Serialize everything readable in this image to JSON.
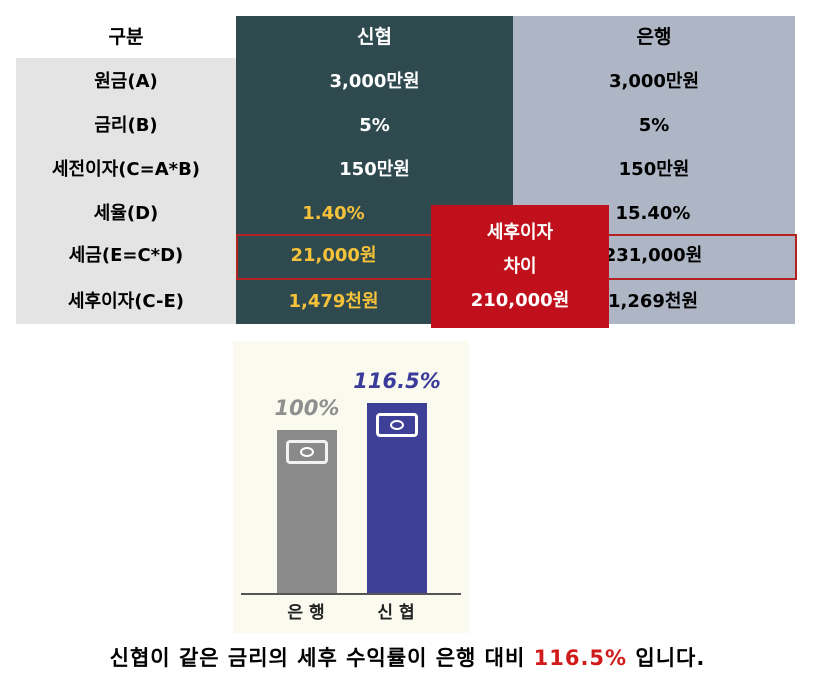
{
  "table": {
    "headers": [
      "구분",
      "신협",
      "은행"
    ],
    "rows": [
      {
        "label": "원금(A)",
        "shinhyup": "3,000만원",
        "bank": "3,000만원"
      },
      {
        "label": "금리(B)",
        "shinhyup": "5%",
        "bank": "5%"
      },
      {
        "label": "세전이자(C=A*B)",
        "shinhyup": "150만원",
        "bank": "150만원"
      },
      {
        "label": "세율(D)",
        "shinhyup": "1.40%",
        "bank": "15.40%"
      },
      {
        "label": "세금(E=C*D)",
        "shinhyup": "21,000원",
        "bank": "231,000원"
      },
      {
        "label": "세후이자(C-E)",
        "shinhyup": "1,479천원",
        "bank": "1,269천원"
      }
    ],
    "colors": {
      "shinhyup_bg": "#2e4a4f",
      "bank_bg": "#aeb5c4",
      "label_bg": "#e4e4e4",
      "highlight_text": "#f5c23a"
    }
  },
  "diff_callout": {
    "line1": "세후이자",
    "line2": "차이",
    "line3": "210,000원",
    "color": "#c0101b"
  },
  "chart_data": {
    "type": "bar",
    "categories": [
      "은행",
      "신협"
    ],
    "values": [
      100,
      116.5
    ],
    "value_labels": [
      "100%",
      "116.5%"
    ],
    "colors": [
      "#8a8a8a",
      "#3e3f96"
    ],
    "icon": "money-bill-icon",
    "ylim": [
      0,
      130
    ]
  },
  "caption": {
    "before": "신협이 같은 금리의 세후 수익률이 은행 대비 ",
    "highlight": "116.5%",
    "after": " 입니다."
  }
}
